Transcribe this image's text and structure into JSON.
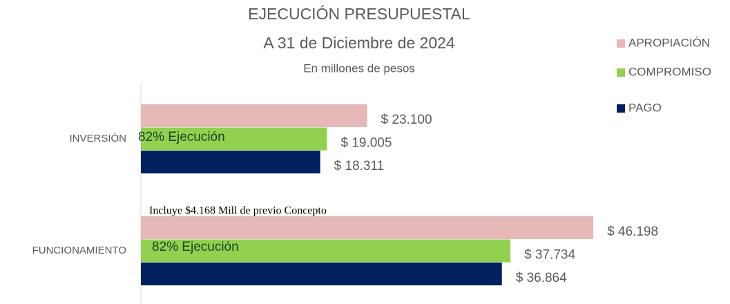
{
  "chart_data": {
    "type": "hbar",
    "title": "EJECUCIÓN PRESUPUESTAL",
    "subtitle": "A 31 de Diciembre de 2024",
    "units_label": "En millones de pesos",
    "categories": [
      "INVERSIÓN",
      "FUNCIONAMIENTO"
    ],
    "series": [
      {
        "name": "APROPIACIÓN",
        "color": "#e6b8b7",
        "values": [
          23100,
          46198
        ],
        "value_labels": [
          "$ 23.100",
          "$ 46.198"
        ]
      },
      {
        "name": "COMPROMISO",
        "color": "#92d050",
        "values": [
          19005,
          37734
        ],
        "value_labels": [
          "$ 19.005",
          "$ 37.734"
        ]
      },
      {
        "name": "PAGO",
        "color": "#002060",
        "values": [
          18311,
          36864
        ],
        "value_labels": [
          "$ 18.311",
          "$ 36.864"
        ]
      }
    ],
    "annotations": [
      "82% Ejecución",
      "82% Ejecución",
      "Incluye $4.168 Mill de previo Concepto"
    ],
    "xlim": [
      0,
      50000
    ],
    "legend": "right"
  }
}
